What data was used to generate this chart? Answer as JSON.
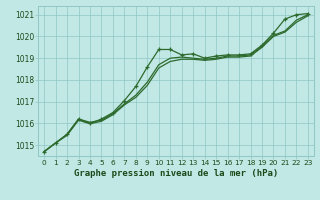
{
  "title": "Graphe pression niveau de la mer (hPa)",
  "hours": [
    0,
    1,
    2,
    3,
    4,
    5,
    6,
    7,
    8,
    9,
    10,
    11,
    12,
    13,
    14,
    15,
    16,
    17,
    18,
    19,
    20,
    21,
    22,
    23
  ],
  "series": [
    [
      1014.7,
      1015.1,
      1015.5,
      1016.2,
      1016.0,
      1016.2,
      1016.5,
      1017.05,
      1017.7,
      1018.6,
      1019.4,
      1019.4,
      1019.15,
      1019.2,
      1019.0,
      1019.1,
      1019.15,
      1019.15,
      1019.2,
      1019.6,
      1020.15,
      1020.8,
      1021.0,
      1021.05
    ],
    [
      1014.7,
      1015.1,
      1015.5,
      1016.2,
      1016.05,
      1016.15,
      1016.45,
      1016.9,
      1017.3,
      1017.9,
      1018.7,
      1019.0,
      1019.05,
      1019.0,
      1018.95,
      1019.0,
      1019.1,
      1019.1,
      1019.15,
      1019.55,
      1020.05,
      1020.25,
      1020.75,
      1021.0
    ],
    [
      1014.7,
      1015.1,
      1015.45,
      1016.15,
      1015.98,
      1016.1,
      1016.4,
      1016.85,
      1017.2,
      1017.75,
      1018.55,
      1018.85,
      1018.95,
      1018.95,
      1018.9,
      1018.95,
      1019.05,
      1019.05,
      1019.1,
      1019.5,
      1020.0,
      1020.2,
      1020.65,
      1020.95
    ]
  ],
  "line_color": "#2d6a2d",
  "bg_color": "#c2e8e5",
  "grid_color": "#8fc8c4",
  "ylim": [
    1014.5,
    1021.4
  ],
  "yticks": [
    1015,
    1016,
    1017,
    1018,
    1019,
    1020,
    1021
  ],
  "title_color": "#1a4a1a",
  "title_fontsize": 6.5,
  "tick_fontsize": 5.5
}
